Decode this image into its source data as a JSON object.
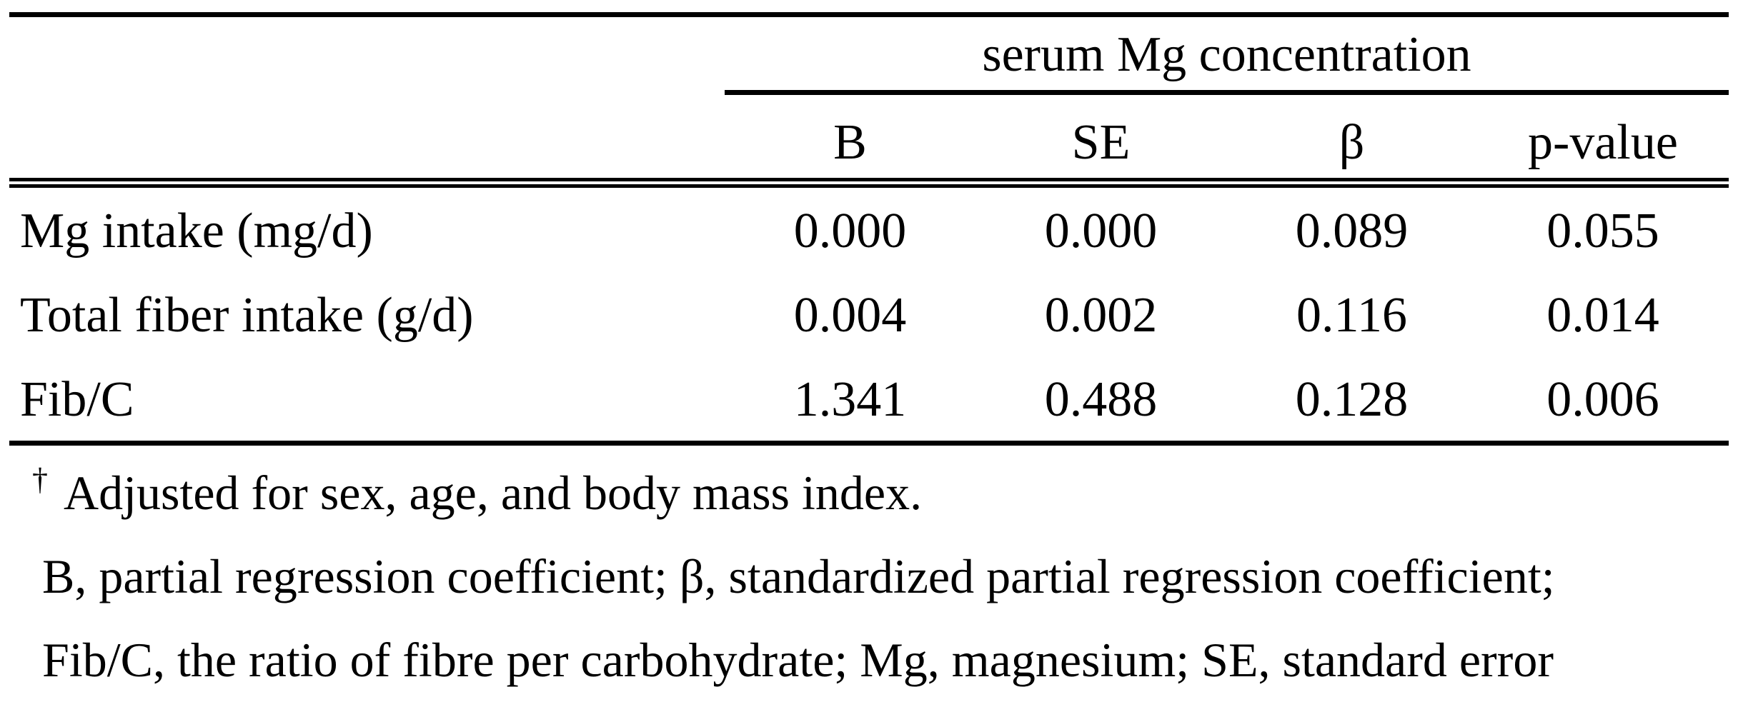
{
  "table": {
    "spanner_header": "serum Mg concentration",
    "columns": [
      "B",
      "SE",
      "β",
      "p-value"
    ],
    "rows": [
      {
        "label": "Mg intake (mg/d)",
        "values": [
          "0.000",
          "0.000",
          "0.089",
          "0.055"
        ]
      },
      {
        "label": "Total fiber intake (g/d)",
        "values": [
          "0.004",
          "0.002",
          "0.116",
          "0.014"
        ]
      },
      {
        "label": "Fib/C",
        "values": [
          "1.341",
          "0.488",
          "0.128",
          "0.006"
        ]
      }
    ]
  },
  "footnotes": {
    "dagger_symbol": "†",
    "line1": "Adjusted for sex, age, and body mass index.",
    "line2": "B, partial regression coefficient; β, standardized partial regression coefficient;",
    "line3": "Fib/C, the ratio of fibre per carbohydrate; Mg, magnesium; SE, standard error"
  },
  "colors": {
    "text": "#000000",
    "background": "#ffffff",
    "rule": "#000000"
  }
}
